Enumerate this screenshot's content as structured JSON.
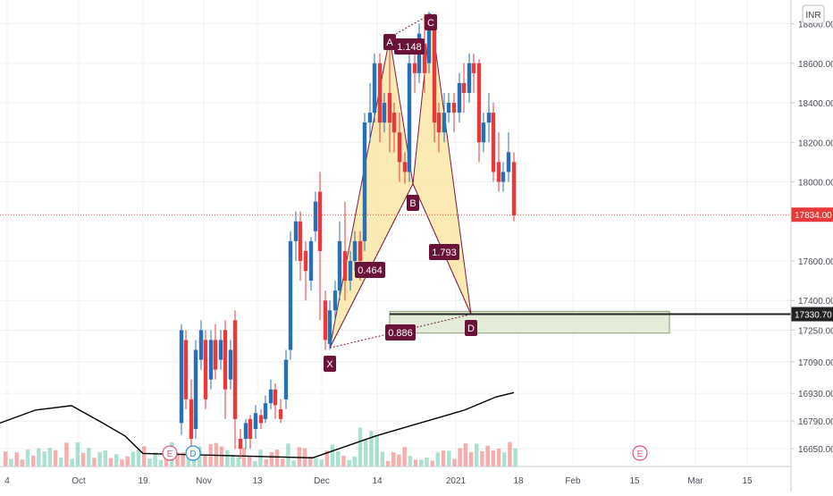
{
  "currency_label": "INR",
  "colors": {
    "up": "#2670b8",
    "down": "#e83a3a",
    "pattern_fill": "#f9e39a",
    "pattern_stroke": "#7a1b45",
    "label_bg": "#6b1239",
    "zone_fill": "#e2ecd6",
    "price_line": "#e83a3a",
    "ma_line": "#000000"
  },
  "chart_data": {
    "type": "candlestick",
    "title": "",
    "ylim": [
      16560,
      18920
    ],
    "y_ticks": [
      "18800.00",
      "18600.00",
      "18400.00",
      "18200.00",
      "18000.00",
      "17600.00",
      "17400.00",
      "17250.00",
      "17090.00",
      "16930.00",
      "16790.00",
      "16650.00"
    ],
    "y_tick_values": [
      18800,
      18600,
      18400,
      18200,
      18000,
      17600,
      17400,
      17250,
      17090,
      16930,
      16790,
      16650
    ],
    "x_ticks": [
      "4",
      "Oct",
      "19",
      "Nov",
      "13",
      "Dec",
      "14",
      "2021",
      "18",
      "Feb",
      "15",
      "Mar",
      "15"
    ],
    "current_price": {
      "value": 17834,
      "label": "17834.00"
    },
    "level_line": {
      "value": 17330.7,
      "label": "17330.70"
    },
    "event_markers": [
      {
        "label": "E",
        "date_index": 3
      },
      {
        "label": "D",
        "date_index": 4
      },
      {
        "label": "E",
        "date_index": 12
      }
    ],
    "pattern": {
      "name": "",
      "points": [
        {
          "label": "X",
          "value": 17160
        },
        {
          "label": "A",
          "value": 18730
        },
        {
          "label": "B",
          "value": 17990
        },
        {
          "label": "C",
          "value": 18850
        },
        {
          "label": "D",
          "value": 17330
        }
      ],
      "ratios": [
        "0.464",
        "1.148",
        "1.793",
        "0.886"
      ]
    },
    "zone": {
      "top": 17345,
      "bottom": 17235
    },
    "moving_average": [
      16760,
      16820,
      16840,
      16760,
      16700,
      16620,
      16600,
      16700,
      16760,
      16820,
      16880,
      16900
    ]
  }
}
